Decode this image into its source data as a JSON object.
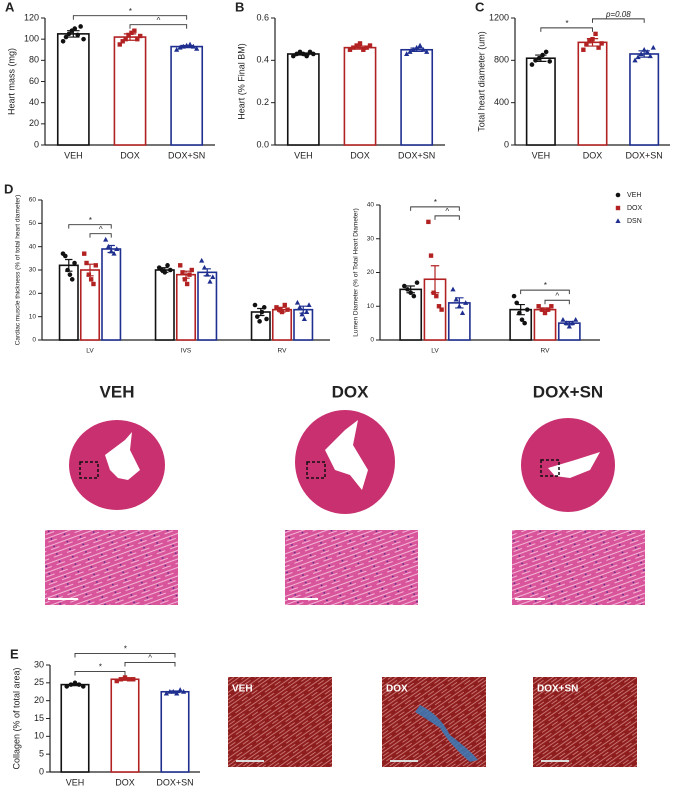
{
  "chart_data": [
    {
      "type": "bar",
      "panel": "A",
      "ylabel": "Heart mass (mg)",
      "categories": [
        "VEH",
        "DOX",
        "DOX+SN"
      ],
      "colors": [
        "#111111",
        "#b22222",
        "#1f2f8f"
      ],
      "values": [
        105,
        102,
        93
      ],
      "errors": [
        3,
        3,
        1
      ],
      "points": [
        [
          98,
          102,
          105,
          108,
          110,
          104,
          112,
          100
        ],
        [
          95,
          98,
          100,
          104,
          106,
          108,
          100,
          103
        ],
        [
          90,
          92,
          93,
          94,
          95,
          93,
          91
        ]
      ],
      "ylim": [
        0,
        120
      ],
      "yticks": [
        0,
        20,
        40,
        60,
        80,
        100,
        120
      ],
      "annotations": [
        {
          "text": "^",
          "from": "DOX",
          "to": "DOX+SN"
        },
        {
          "text": "*",
          "from": "VEH",
          "to": "DOX+SN"
        }
      ]
    },
    {
      "type": "bar",
      "panel": "B",
      "ylabel": "Heart (% Final BM)",
      "categories": [
        "VEH",
        "DOX",
        "DOX+SN"
      ],
      "colors": [
        "#111111",
        "#b22222",
        "#1f2f8f"
      ],
      "values": [
        0.43,
        0.46,
        0.45
      ],
      "errors": [
        0.005,
        0.007,
        0.008
      ],
      "points": [
        [
          0.42,
          0.43,
          0.44,
          0.43,
          0.42,
          0.44,
          0.43
        ],
        [
          0.45,
          0.46,
          0.47,
          0.48,
          0.45,
          0.46,
          0.47
        ],
        [
          0.43,
          0.44,
          0.45,
          0.46,
          0.47,
          0.45,
          0.44
        ]
      ],
      "ylim": [
        0,
        0.6
      ],
      "yticks": [
        {
          "value": 0,
          "label": "0.0"
        },
        0.2,
        0.4,
        0.6
      ]
    },
    {
      "type": "bar",
      "panel": "C",
      "ylabel": "Total heart diameter (um)",
      "categories": [
        "VEH",
        "DOX",
        "DOX+SN"
      ],
      "colors": [
        "#111111",
        "#b22222",
        "#1f2f8f"
      ],
      "values": [
        820,
        970,
        860
      ],
      "errors": [
        30,
        35,
        30
      ],
      "points": [
        [
          760,
          800,
          820,
          850,
          880,
          790
        ],
        [
          900,
          950,
          980,
          1000,
          1050,
          920,
          960
        ],
        [
          800,
          830,
          860,
          900,
          880,
          840,
          920
        ]
      ],
      "ylim": [
        0,
        1200
      ],
      "yticks": [
        0,
        400,
        800,
        1200
      ],
      "annotations": [
        {
          "text": "*",
          "from": "VEH",
          "to": "DOX"
        },
        {
          "text": "p=0.08",
          "from": "DOX",
          "to": "DOX+SN"
        }
      ]
    },
    {
      "type": "bar",
      "panel": "D",
      "ylabel": "Cardiac muscle thickness (% of total heart diameter)",
      "categories": [
        "LV",
        "IVS",
        "RV"
      ],
      "series": [
        {
          "name": "VEH",
          "color": "#111111",
          "values": [
            32,
            30,
            12
          ],
          "errors": [
            2.5,
            1,
            1.5
          ],
          "points": [
            [
              37,
              36,
              30,
              28,
              26,
              33
            ],
            [
              31,
              30,
              29,
              32,
              30
            ],
            [
              15,
              10,
              8,
              12,
              14,
              9
            ]
          ]
        },
        {
          "name": "DOX",
          "color": "#b22222",
          "values": [
            30,
            28,
            13
          ],
          "errors": [
            2.5,
            1.5,
            1
          ],
          "points": [
            [
              37,
              33,
              28,
              26,
              24,
              32
            ],
            [
              32,
              29,
              26,
              24,
              28,
              30
            ],
            [
              14,
              13,
              12,
              15,
              13
            ]
          ]
        },
        {
          "name": "DSN",
          "color": "#1f2f8f",
          "values": [
            39,
            29,
            13
          ],
          "errors": [
            1.5,
            1.5,
            1.5
          ],
          "points": [
            [
              43,
              40,
              38,
              37,
              39
            ],
            [
              34,
              31,
              28,
              25,
              27
            ],
            [
              16,
              14,
              11,
              9,
              12,
              15
            ]
          ]
        }
      ],
      "ylim": [
        0,
        60
      ],
      "yticks": [
        0,
        10,
        20,
        30,
        40,
        50,
        60
      ],
      "annotations": [
        {
          "text": "^",
          "category": "LV",
          "from": "DOX",
          "to": "DSN"
        },
        {
          "text": "*",
          "category": "LV",
          "from": "VEH",
          "to": "DSN"
        }
      ]
    },
    {
      "type": "bar",
      "ylabel": "Lumen Diameter (% of Total Heart Diameter)",
      "categories": [
        "LV",
        "RV"
      ],
      "series": [
        {
          "name": "VEH",
          "color": "#111111",
          "values": [
            15,
            9
          ],
          "errors": [
            1,
            1.5
          ],
          "points": [
            [
              16,
              15,
              14,
              13,
              17
            ],
            [
              13,
              11,
              8,
              6,
              5,
              9
            ]
          ]
        },
        {
          "name": "DOX",
          "color": "#b22222",
          "values": [
            18,
            9
          ],
          "errors": [
            4,
            0.5
          ],
          "points": [
            [
              35,
              25,
              14,
              13,
              10,
              9
            ],
            [
              10,
              9,
              8,
              9,
              10
            ]
          ]
        },
        {
          "name": "DSN",
          "color": "#1f2f8f",
          "values": [
            11,
            5
          ],
          "errors": [
            1.5,
            0.5
          ],
          "points": [
            [
              15,
              12,
              10,
              8,
              11
            ],
            [
              6,
              5,
              4,
              5,
              6
            ]
          ]
        }
      ],
      "ylim": [
        0,
        40
      ],
      "yticks": [
        0,
        10,
        20,
        30,
        40
      ],
      "legend": "top-right",
      "annotations": [
        {
          "text": "^",
          "category": "LV",
          "from": "DOX",
          "to": "DSN"
        },
        {
          "text": "*",
          "category": "LV",
          "from": "VEH",
          "to": "DSN"
        },
        {
          "text": "^",
          "category": "RV",
          "from": "DOX",
          "to": "DSN"
        },
        {
          "text": "*",
          "category": "RV",
          "from": "VEH",
          "to": "DSN"
        }
      ]
    },
    {
      "type": "bar",
      "panel": "E",
      "ylabel": "Collagen (% of total area)",
      "categories": [
        "VEH",
        "DOX",
        "DOX+SN"
      ],
      "colors": [
        "#111111",
        "#b22222",
        "#1f2f8f"
      ],
      "values": [
        24.5,
        26,
        22.5
      ],
      "errors": [
        0.3,
        0.3,
        0.2
      ],
      "points": [
        [
          24,
          24.5,
          25,
          24.5,
          24
        ],
        [
          25.5,
          26,
          26.5,
          26,
          26
        ],
        [
          22,
          22.5,
          22.5,
          22,
          23,
          22.5
        ]
      ],
      "ylim": [
        0,
        30
      ],
      "yticks": [
        0,
        5,
        10,
        15,
        20,
        25,
        30
      ],
      "annotations": [
        {
          "text": "*",
          "from": "VEH",
          "to": "DOX"
        },
        {
          "text": "^",
          "from": "DOX",
          "to": "DOX+SN"
        },
        {
          "text": "*",
          "from": "VEH",
          "to": "DOX+SN"
        }
      ]
    }
  ],
  "histology": {
    "labels": [
      "VEH",
      "DOX",
      "DOX+SN"
    ]
  },
  "collagen_images": {
    "labels": [
      "VEH",
      "DOX",
      "DOX+SN"
    ]
  }
}
